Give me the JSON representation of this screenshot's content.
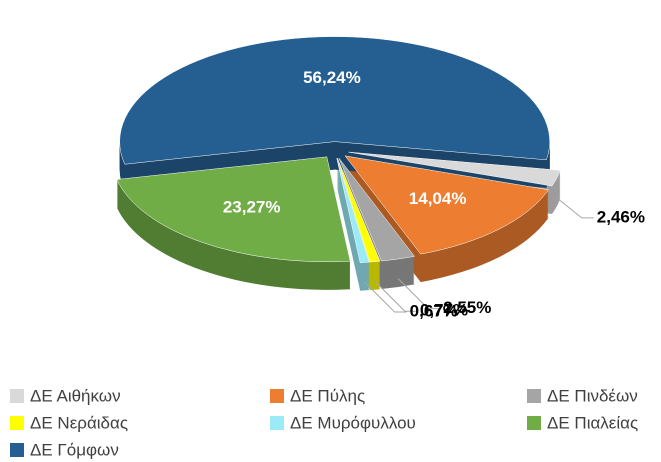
{
  "chart_data": {
    "type": "pie",
    "categories": [
      "ΔΕ Αιθήκων",
      "ΔΕ Πύλης",
      "ΔΕ Πινδέων",
      "ΔΕ Νεράιδας",
      "ΔΕ Μυρόφυλλου",
      "ΔΕ Πιαλείας",
      "ΔΕ Γόμφων"
    ],
    "values": [
      2.46,
      14.04,
      2.55,
      0.77,
      0.67,
      23.27,
      56.24
    ],
    "value_labels": [
      "2,46%",
      "14,04%",
      "2,55%",
      "0,77%",
      "0,67%",
      "23,27%",
      "56,24%"
    ],
    "colors": [
      "#d9d9d9",
      "#ed7d31",
      "#a5a5a5",
      "#ffff00",
      "#9beaf7",
      "#70ad47",
      "#255e91"
    ],
    "legend": "bottom"
  }
}
